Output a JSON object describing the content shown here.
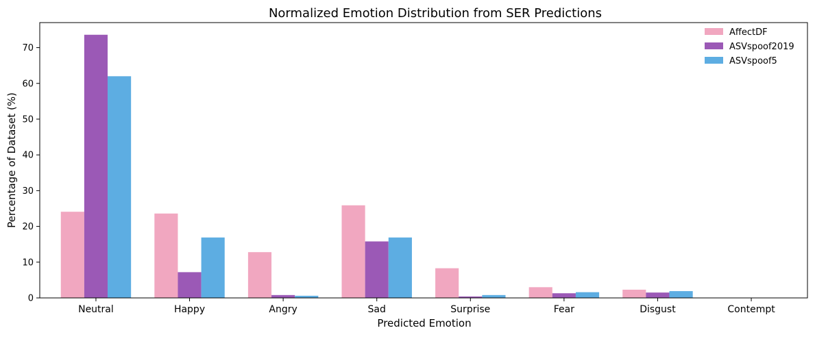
{
  "chart_data": {
    "type": "bar",
    "title": "Normalized Emotion Distribution from SER Predictions",
    "xlabel": "Predicted Emotion",
    "ylabel": "Percentage of Dataset (%)",
    "categories": [
      "Neutral",
      "Happy",
      "Angry",
      "Sad",
      "Surprise",
      "Fear",
      "Disgust",
      "Contempt"
    ],
    "ylim": [
      0,
      77
    ],
    "yticks": [
      0,
      10,
      20,
      30,
      40,
      50,
      60,
      70
    ],
    "grid": false,
    "legend_position": "top-right",
    "series": [
      {
        "name": "AffectDF",
        "color": "#f1a7c0",
        "values": [
          24.1,
          23.6,
          12.8,
          25.9,
          8.3,
          3.0,
          2.3,
          0.0
        ]
      },
      {
        "name": "ASVspoof2019",
        "color": "#9b59b6",
        "values": [
          73.6,
          7.2,
          0.8,
          15.8,
          0.4,
          1.3,
          1.5,
          0.0
        ]
      },
      {
        "name": "ASVspoof5",
        "color": "#5dade2",
        "values": [
          62.0,
          16.9,
          0.6,
          16.9,
          0.8,
          1.6,
          1.9,
          0.0
        ]
      }
    ]
  }
}
